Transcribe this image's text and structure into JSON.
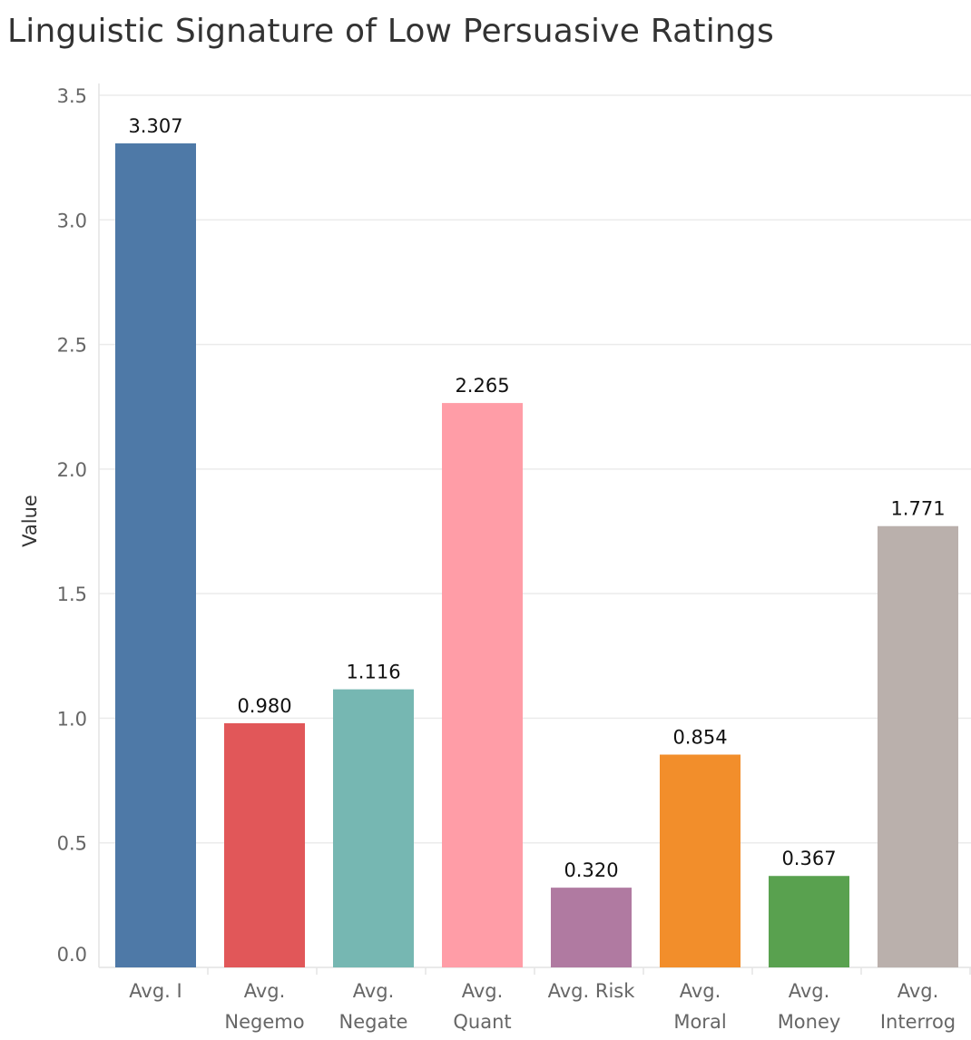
{
  "chart_data": {
    "type": "bar",
    "title": "Linguistic Signature of Low Persuasive Ratings",
    "xlabel": "",
    "ylabel": "Value",
    "ylim": [
      0,
      3.5
    ],
    "yticks": [
      "0.0",
      "0.5",
      "1.0",
      "1.5",
      "2.0",
      "2.5",
      "3.0",
      "3.5"
    ],
    "grid": true,
    "categories": [
      [
        "Avg. I"
      ],
      [
        "Avg.",
        "Negemo"
      ],
      [
        "Avg.",
        "Negate"
      ],
      [
        "Avg.",
        "Quant"
      ],
      [
        "Avg. Risk"
      ],
      [
        "Avg.",
        "Moral"
      ],
      [
        "Avg.",
        "Money"
      ],
      [
        "Avg.",
        "Interrog"
      ]
    ],
    "values": [
      3.307,
      0.98,
      1.116,
      2.265,
      0.32,
      0.854,
      0.367,
      1.771
    ],
    "value_labels": [
      "3.307",
      "0.980",
      "1.116",
      "2.265",
      "0.320",
      "0.854",
      "0.367",
      "1.771"
    ],
    "colors": [
      "#4e79a7",
      "#e15759",
      "#76b7b2",
      "#ff9da7",
      "#b07aa1",
      "#f28e2b",
      "#59a14f",
      "#bab0ac"
    ]
  }
}
